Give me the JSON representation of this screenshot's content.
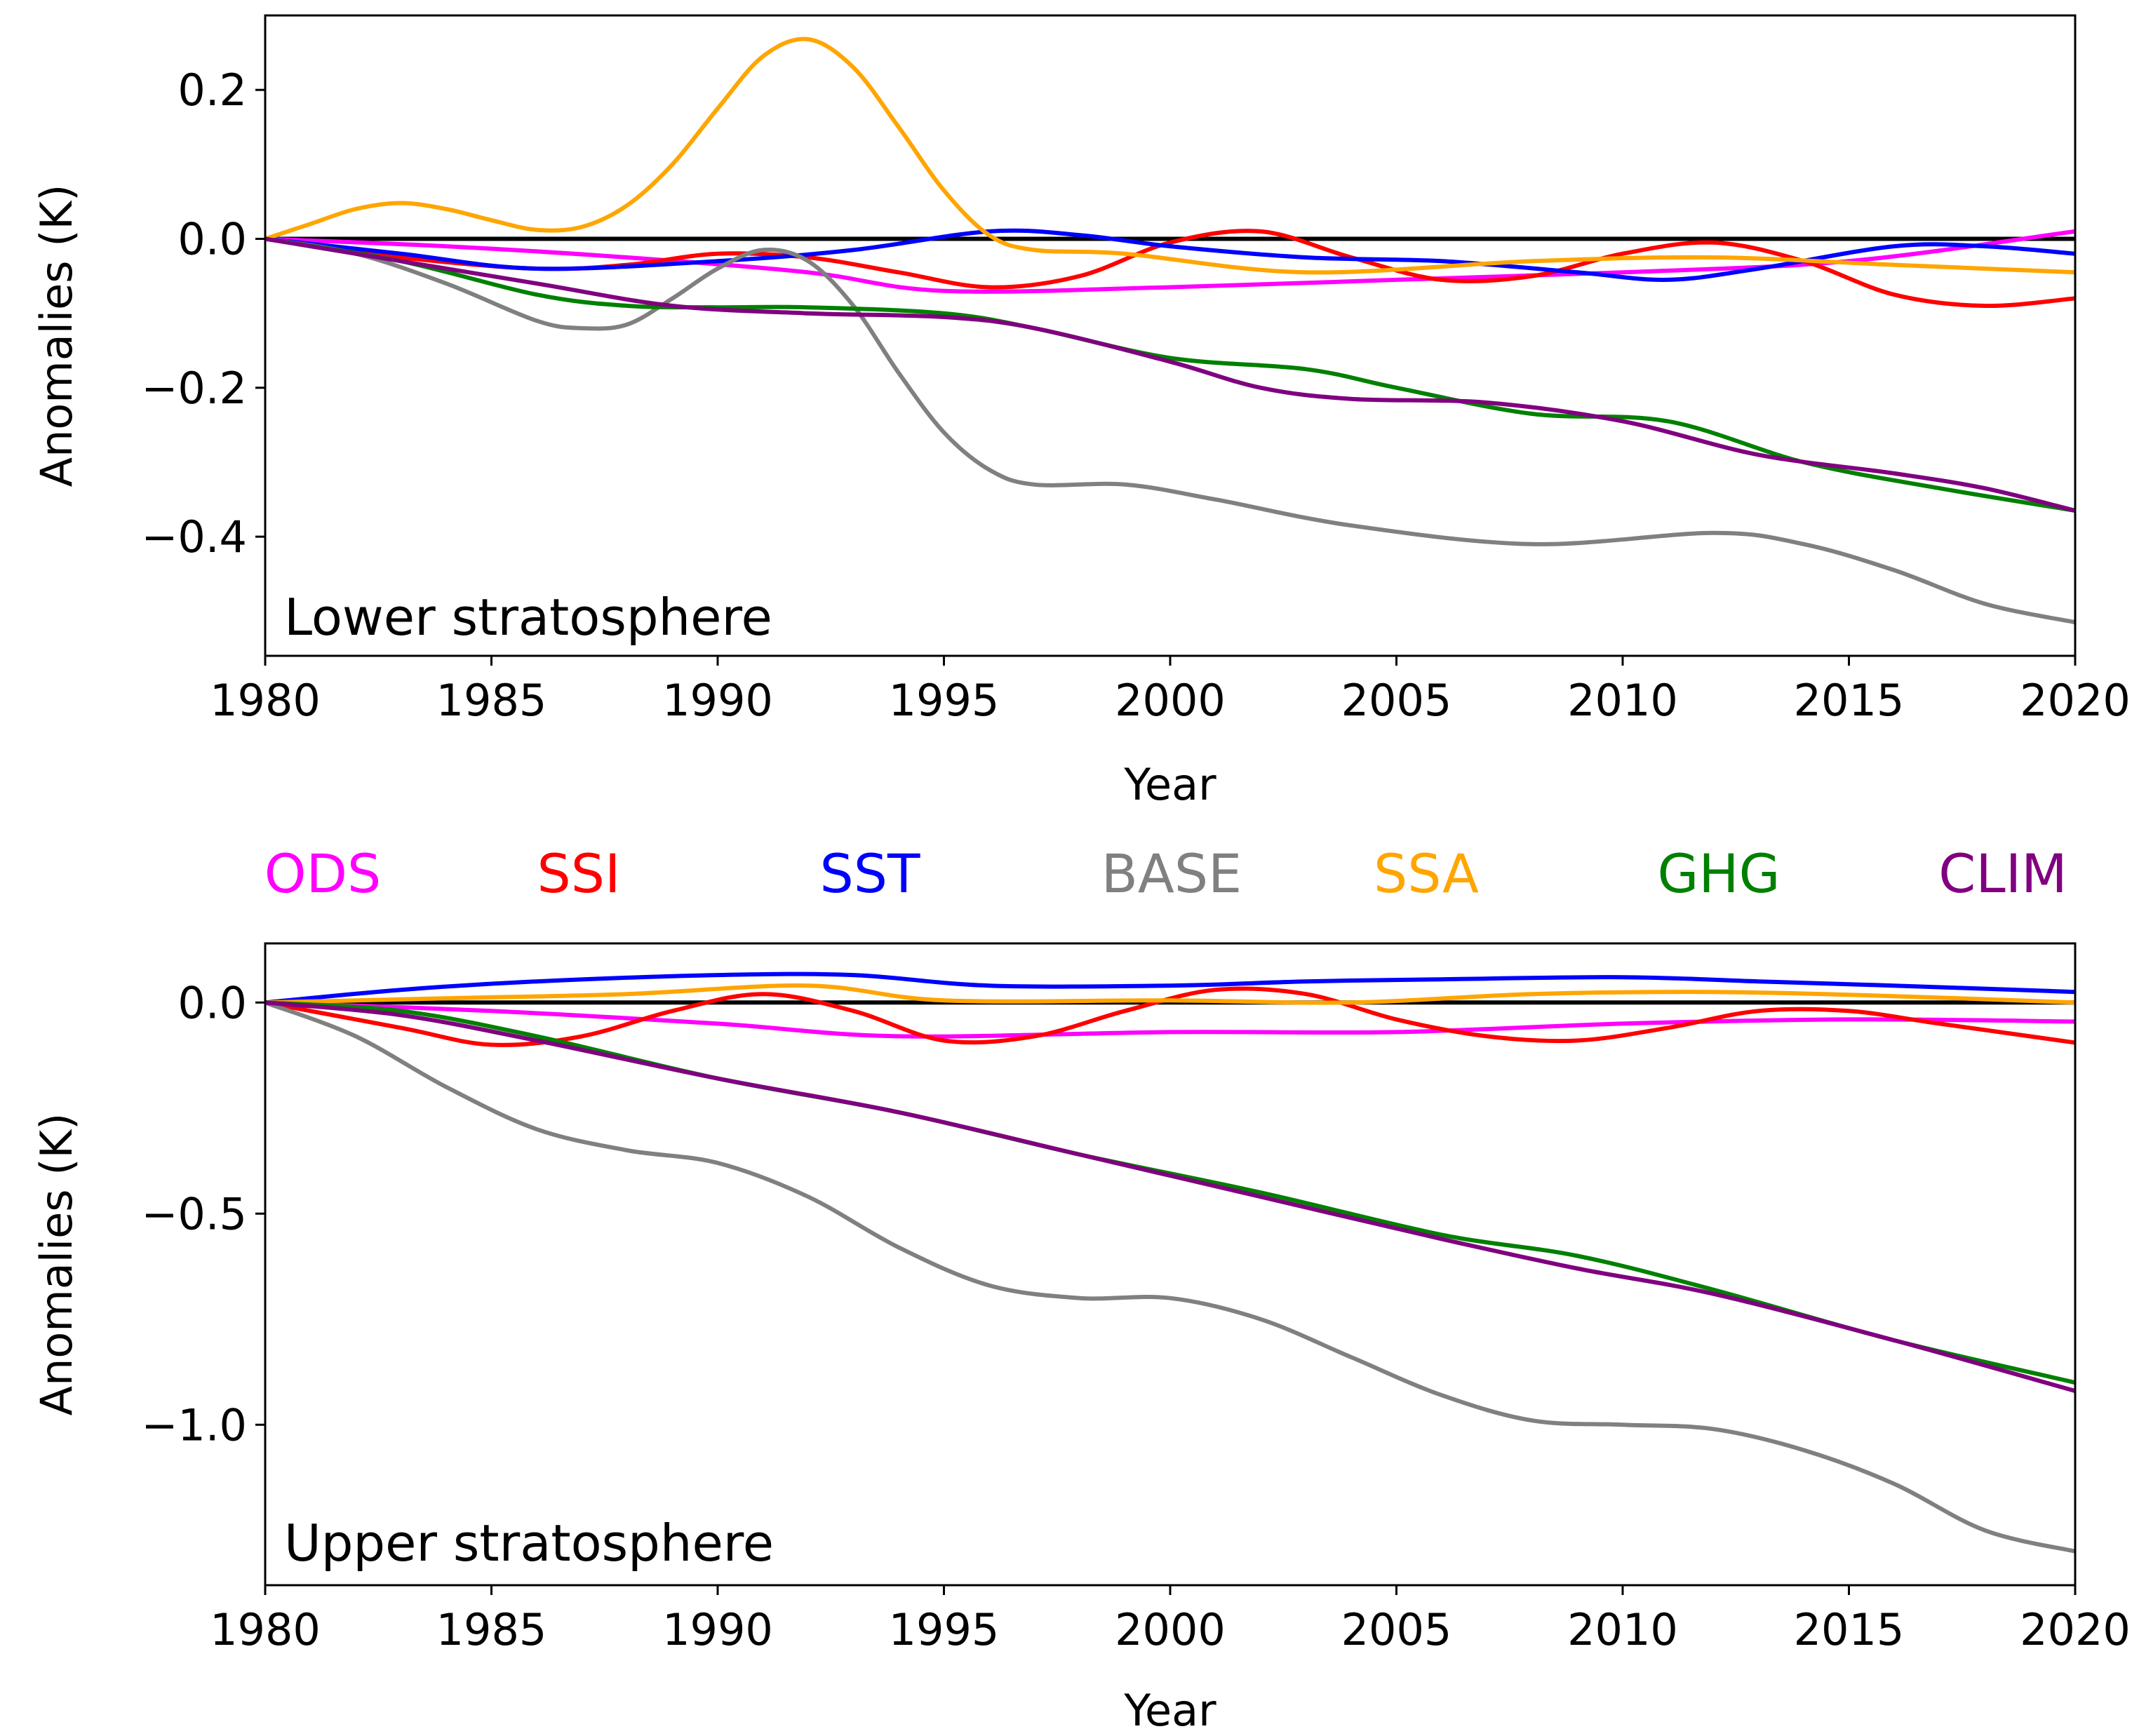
{
  "legend": [
    {
      "name": "ODS",
      "color": "#ff00ff"
    },
    {
      "name": "SSI",
      "color": "#ff0000"
    },
    {
      "name": "SST",
      "color": "#0000ff"
    },
    {
      "name": "BASE",
      "color": "#808080"
    },
    {
      "name": "SSA",
      "color": "#ffa500"
    },
    {
      "name": "GHG",
      "color": "#008000"
    },
    {
      "name": "CLIM",
      "color": "#800080"
    }
  ],
  "chart_data": [
    {
      "type": "line",
      "panel_label": "Lower stratosphere",
      "xlabel": "Year",
      "ylabel": "Anomalies (K)",
      "xlim": [
        1980,
        2020
      ],
      "ylim": [
        -0.56,
        0.3
      ],
      "xticks": [
        1980,
        1985,
        1990,
        1995,
        2000,
        2005,
        2010,
        2015,
        2020
      ],
      "xtick_labels": [
        "1980",
        "1985",
        "1990",
        "1995",
        "2000",
        "2005",
        "2010",
        "2015",
        "2020"
      ],
      "yticks": [
        0.2,
        0.0,
        -0.2,
        -0.4
      ],
      "ytick_labels": [
        "0.2",
        "0.0",
        "−0.2",
        "−0.4"
      ],
      "zero_line": true,
      "series": [
        {
          "name": "ODS",
          "color": "#ff00ff",
          "x": [
            1980,
            1984,
            1988,
            1992,
            1995,
            2000,
            2005,
            2010,
            2015,
            2020
          ],
          "y": [
            0.0,
            -0.01,
            -0.025,
            -0.045,
            -0.07,
            -0.065,
            -0.055,
            -0.045,
            -0.03,
            0.01
          ]
        },
        {
          "name": "SSI",
          "color": "#ff0000",
          "x": [
            1980,
            1983,
            1986,
            1988,
            1990,
            1992,
            1994,
            1996,
            1998,
            2000,
            2002,
            2004,
            2006,
            2008,
            2010,
            2012,
            2014,
            2016,
            2018,
            2020
          ],
          "y": [
            0.0,
            -0.025,
            -0.04,
            -0.035,
            -0.02,
            -0.025,
            -0.045,
            -0.065,
            -0.05,
            -0.005,
            0.01,
            -0.025,
            -0.055,
            -0.05,
            -0.02,
            -0.005,
            -0.03,
            -0.075,
            -0.09,
            -0.08
          ]
        },
        {
          "name": "SST",
          "color": "#0000ff",
          "x": [
            1980,
            1983,
            1986,
            1990,
            1993,
            1996,
            1998,
            2000,
            2003,
            2006,
            2009,
            2011,
            2013,
            2016,
            2018,
            2020
          ],
          "y": [
            0.0,
            -0.02,
            -0.04,
            -0.03,
            -0.015,
            0.01,
            0.005,
            -0.01,
            -0.025,
            -0.03,
            -0.045,
            -0.055,
            -0.04,
            -0.01,
            -0.01,
            -0.02
          ]
        },
        {
          "name": "BASE",
          "color": "#808080",
          "x": [
            1980,
            1982,
            1984,
            1986,
            1987,
            1988,
            1989,
            1990,
            1991,
            1992,
            1993,
            1994,
            1995,
            1996,
            1997,
            1999,
            2001,
            2004,
            2008,
            2012,
            2014,
            2016,
            2018,
            2020
          ],
          "y": [
            0.0,
            -0.02,
            -0.06,
            -0.11,
            -0.12,
            -0.115,
            -0.08,
            -0.04,
            -0.015,
            -0.03,
            -0.09,
            -0.18,
            -0.26,
            -0.31,
            -0.33,
            -0.33,
            -0.35,
            -0.385,
            -0.41,
            -0.395,
            -0.41,
            -0.445,
            -0.49,
            -0.515
          ]
        },
        {
          "name": "SSA",
          "color": "#ffa500",
          "x": [
            1980,
            1981,
            1982,
            1983,
            1984,
            1985,
            1986,
            1987,
            1988,
            1989,
            1990,
            1991,
            1992,
            1993,
            1994,
            1995,
            1996,
            1997,
            1999,
            2003,
            2008,
            2012,
            2016,
            2020
          ],
          "y": [
            0.0,
            0.02,
            0.04,
            0.048,
            0.04,
            0.025,
            0.012,
            0.016,
            0.045,
            0.1,
            0.175,
            0.245,
            0.268,
            0.23,
            0.15,
            0.065,
            0.005,
            -0.015,
            -0.02,
            -0.045,
            -0.03,
            -0.025,
            -0.035,
            -0.045
          ]
        },
        {
          "name": "GHG",
          "color": "#008000",
          "x": [
            1980,
            1983,
            1986,
            1988,
            1990,
            1992,
            1995,
            1997,
            2000,
            2003,
            2005,
            2008,
            2011,
            2014,
            2017,
            2020
          ],
          "y": [
            0.0,
            -0.03,
            -0.075,
            -0.09,
            -0.092,
            -0.092,
            -0.1,
            -0.12,
            -0.16,
            -0.175,
            -0.2,
            -0.235,
            -0.245,
            -0.3,
            -0.335,
            -0.365
          ]
        },
        {
          "name": "CLIM",
          "color": "#800080",
          "x": [
            1980,
            1983,
            1986,
            1989,
            1992,
            1995,
            1997,
            2000,
            2002,
            2004,
            2007,
            2010,
            2013,
            2016,
            2018,
            2020
          ],
          "y": [
            0.0,
            -0.03,
            -0.06,
            -0.09,
            -0.1,
            -0.105,
            -0.12,
            -0.165,
            -0.2,
            -0.215,
            -0.22,
            -0.245,
            -0.29,
            -0.315,
            -0.335,
            -0.365
          ]
        }
      ]
    },
    {
      "type": "line",
      "panel_label": "Upper stratosphere",
      "xlabel": "Year",
      "ylabel": "Anomalies (K)",
      "xlim": [
        1980,
        2020
      ],
      "ylim": [
        -1.38,
        0.14
      ],
      "xticks": [
        1980,
        1985,
        1990,
        1995,
        2000,
        2005,
        2010,
        2015,
        2020
      ],
      "xtick_labels": [
        "1980",
        "1985",
        "1990",
        "1995",
        "2000",
        "2005",
        "2010",
        "2015",
        "2020"
      ],
      "yticks": [
        0.0,
        -0.5,
        -1.0
      ],
      "ytick_labels": [
        "0.0",
        "−0.5",
        "−1.0"
      ],
      "zero_line": true,
      "series": [
        {
          "name": "ODS",
          "color": "#ff00ff",
          "x": [
            1980,
            1985,
            1990,
            1994,
            2000,
            2005,
            2010,
            2015,
            2020
          ],
          "y": [
            0.0,
            -0.02,
            -0.05,
            -0.08,
            -0.07,
            -0.07,
            -0.05,
            -0.04,
            -0.045
          ]
        },
        {
          "name": "SSI",
          "color": "#ff0000",
          "x": [
            1980,
            1983,
            1985,
            1987,
            1989,
            1991,
            1993,
            1995,
            1997,
            1999,
            2001,
            2003,
            2005,
            2007,
            2009,
            2011,
            2013,
            2015,
            2017,
            2020
          ],
          "y": [
            0.0,
            -0.06,
            -0.1,
            -0.08,
            -0.02,
            0.02,
            -0.02,
            -0.09,
            -0.08,
            -0.02,
            0.03,
            0.02,
            -0.04,
            -0.08,
            -0.09,
            -0.06,
            -0.02,
            -0.02,
            -0.05,
            -0.095
          ]
        },
        {
          "name": "SST",
          "color": "#0000ff",
          "x": [
            1980,
            1983,
            1986,
            1990,
            1993,
            1996,
            2000,
            2003,
            2006,
            2010,
            2013,
            2016,
            2020
          ],
          "y": [
            0.0,
            0.03,
            0.05,
            0.065,
            0.065,
            0.04,
            0.04,
            0.05,
            0.055,
            0.06,
            0.05,
            0.04,
            0.025
          ]
        },
        {
          "name": "BASE",
          "color": "#808080",
          "x": [
            1980,
            1982,
            1984,
            1986,
            1988,
            1990,
            1992,
            1994,
            1996,
            1998,
            2000,
            2002,
            2004,
            2006,
            2008,
            2010,
            2012,
            2014,
            2016,
            2018,
            2020
          ],
          "y": [
            0.0,
            -0.08,
            -0.2,
            -0.3,
            -0.35,
            -0.38,
            -0.46,
            -0.58,
            -0.67,
            -0.7,
            -0.7,
            -0.75,
            -0.84,
            -0.93,
            -0.99,
            -1.0,
            -1.01,
            -1.06,
            -1.14,
            -1.25,
            -1.3
          ]
        },
        {
          "name": "SSA",
          "color": "#ffa500",
          "x": [
            1980,
            1984,
            1988,
            1992,
            1995,
            2000,
            2004,
            2008,
            2012,
            2016,
            2020
          ],
          "y": [
            0.0,
            0.01,
            0.02,
            0.04,
            0.005,
            0.005,
            0.0,
            0.02,
            0.025,
            0.015,
            0.0
          ]
        },
        {
          "name": "GHG",
          "color": "#008000",
          "x": [
            1980,
            1983,
            1986,
            1990,
            1994,
            1998,
            2002,
            2006,
            2009,
            2012,
            2016,
            2020
          ],
          "y": [
            0.0,
            -0.02,
            -0.08,
            -0.18,
            -0.26,
            -0.36,
            -0.45,
            -0.55,
            -0.6,
            -0.68,
            -0.8,
            -0.9
          ]
        },
        {
          "name": "CLIM",
          "color": "#800080",
          "x": [
            1980,
            1983,
            1986,
            1990,
            1994,
            1998,
            2002,
            2006,
            2009,
            2012,
            2016,
            2020
          ],
          "y": [
            0.0,
            -0.03,
            -0.09,
            -0.18,
            -0.26,
            -0.36,
            -0.46,
            -0.56,
            -0.63,
            -0.69,
            -0.8,
            -0.92
          ]
        }
      ]
    }
  ]
}
